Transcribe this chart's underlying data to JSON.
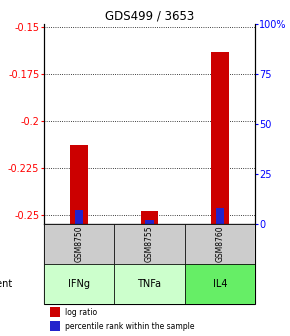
{
  "title": "GDS499 / 3653",
  "samples": [
    "GSM8750",
    "GSM8755",
    "GSM8760"
  ],
  "agents": [
    "IFNg",
    "TNFa",
    "IL4"
  ],
  "log_ratios": [
    -0.213,
    -0.248,
    -0.163
  ],
  "percentile_ranks": [
    7,
    2,
    8
  ],
  "ylim_left": [
    -0.255,
    -0.148
  ],
  "ylim_right": [
    0,
    100
  ],
  "yticks_left": [
    -0.25,
    -0.225,
    -0.2,
    -0.175,
    -0.15
  ],
  "yticks_right": [
    0,
    25,
    50,
    75,
    100
  ],
  "ytick_labels_left": [
    "-0.25",
    "-0.225",
    "-0.2",
    "-0.175",
    "-0.15"
  ],
  "ytick_labels_right": [
    "0",
    "25",
    "50",
    "75",
    "100%"
  ],
  "bar_color_red": "#cc0000",
  "bar_color_blue": "#2222cc",
  "sample_bg_color": "#cccccc",
  "agent_colors": [
    "#ccffcc",
    "#ccffcc",
    "#66ee66"
  ],
  "legend_items": [
    "log ratio",
    "percentile rank within the sample"
  ],
  "bar_width": 0.25,
  "blue_bar_width": 0.12
}
